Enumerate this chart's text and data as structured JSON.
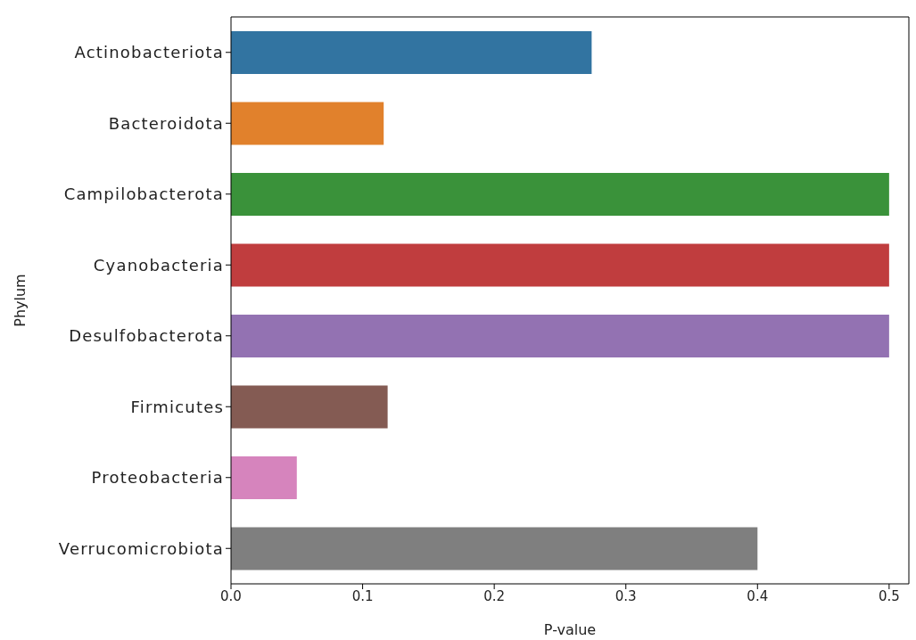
{
  "chart_data": {
    "type": "bar",
    "orientation": "horizontal",
    "xlabel": "P-value",
    "ylabel": "Phylum",
    "categories": [
      "Actinobacteriota",
      "Bacteroidota",
      "Campilobacterota",
      "Cyanobacteria",
      "Desulfobacterota",
      "Firmicutes",
      "Proteobacteria",
      "Verrucomicrobiota"
    ],
    "values": [
      0.274,
      0.116,
      0.5,
      0.5,
      0.5,
      0.119,
      0.05,
      0.4
    ],
    "colors": [
      "#3274a1",
      "#e1812c",
      "#3a923a",
      "#c03d3e",
      "#9372b2",
      "#845b53",
      "#d684bd",
      "#7f7f7f"
    ],
    "xlim": [
      0,
      0.515
    ],
    "xticks": [
      {
        "value": 0,
        "label": "0.0"
      },
      0.1,
      0.2,
      0.3,
      0.4,
      0.5
    ],
    "grid": false
  }
}
